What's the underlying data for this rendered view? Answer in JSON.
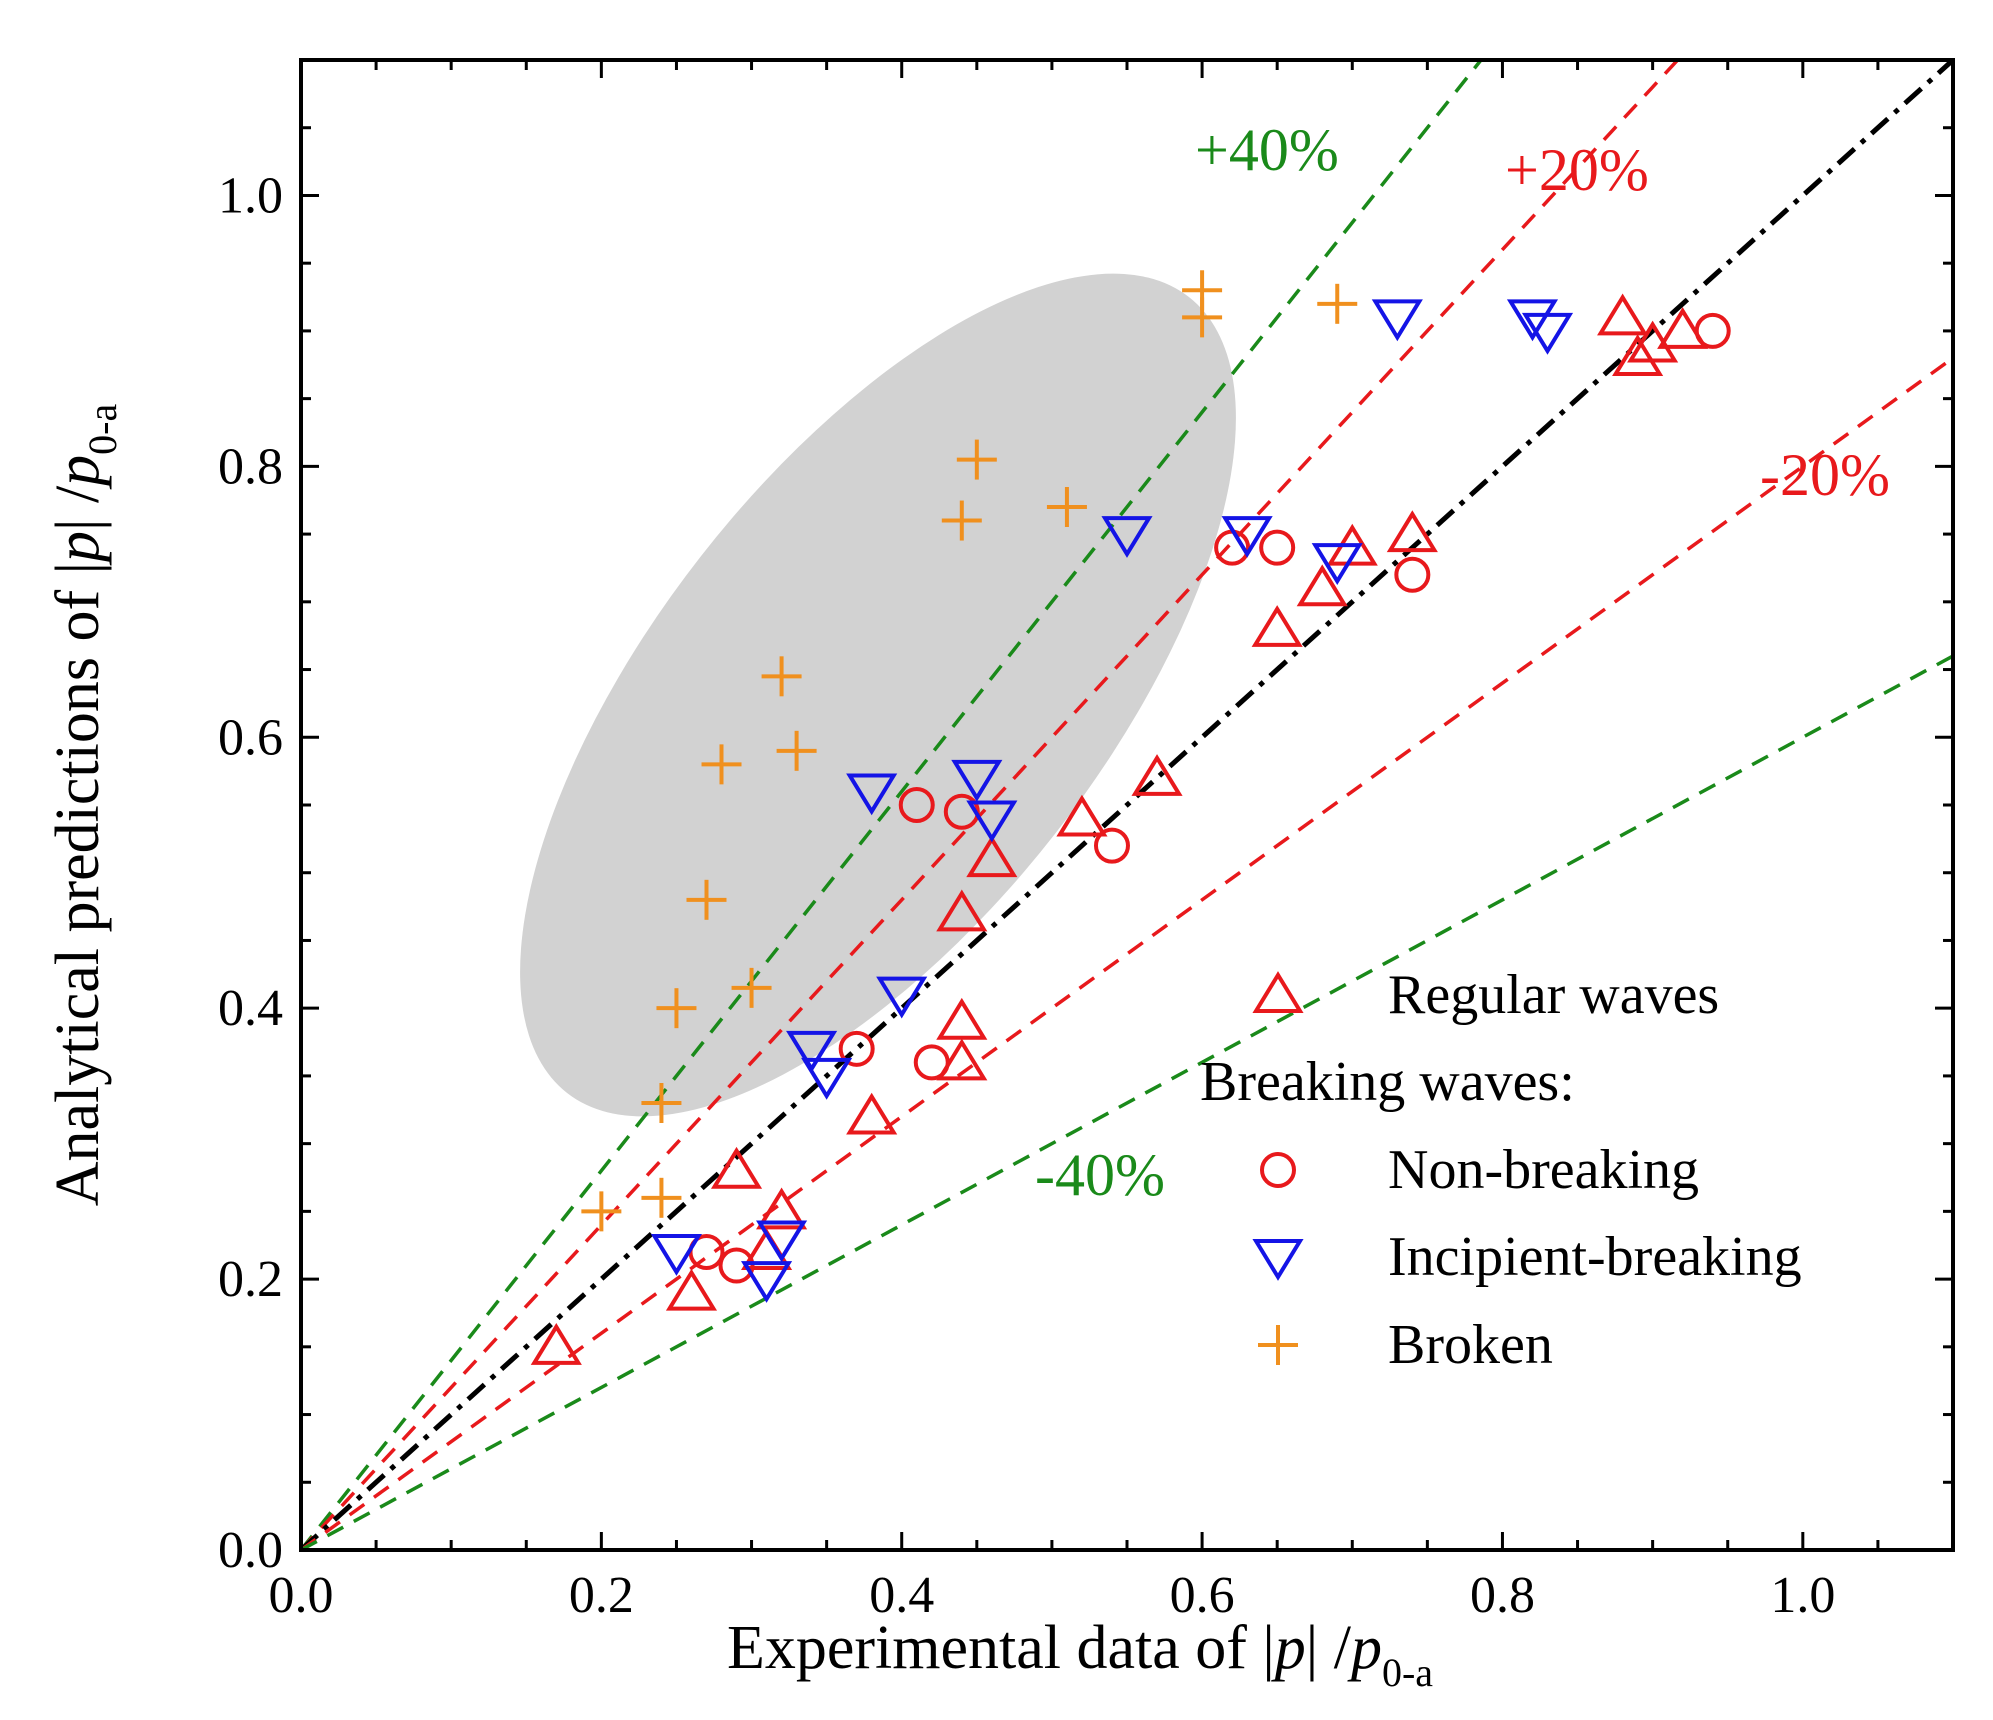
{
  "chart_data": {
    "type": "scatter",
    "xlabel": {
      "prefix": "Experimental data of |",
      "var": "p",
      "mid": "| /",
      "var2": "p",
      "sub": "0-a"
    },
    "ylabel": {
      "prefix": "Analytical predictions of |",
      "var": "p",
      "mid": "| /",
      "var2": "p",
      "sub": "0-a"
    },
    "xlim": [
      0,
      1.1
    ],
    "ylim": [
      0,
      1.1
    ],
    "xticks": [
      "0.0",
      "0.2",
      "0.4",
      "0.6",
      "0.8",
      "1.0"
    ],
    "yticks": [
      "0.0",
      "0.2",
      "0.4",
      "0.6",
      "0.8",
      "1.0"
    ],
    "reference_lines": [
      {
        "label": "+40%",
        "slope": 1.4,
        "color": "#1a8a1a"
      },
      {
        "label": "+20%",
        "slope": 1.2,
        "color": "#e8191c"
      },
      {
        "label": "",
        "slope": 1.0,
        "color": "#000000"
      },
      {
        "label": "-20%",
        "slope": 0.8,
        "color": "#e8191c"
      },
      {
        "label": "-40%",
        "slope": 0.6,
        "color": "#1a8a1a"
      }
    ],
    "highlight_region": {
      "note": "shaded ellipse around broken-wave points",
      "color": "#cfcfcf"
    },
    "series": [
      {
        "name": "Regular waves",
        "marker": "triangle-up",
        "color": "#e8191c",
        "points": [
          [
            0.17,
            0.15
          ],
          [
            0.26,
            0.19
          ],
          [
            0.29,
            0.28
          ],
          [
            0.31,
            0.22
          ],
          [
            0.32,
            0.25
          ],
          [
            0.38,
            0.32
          ],
          [
            0.44,
            0.36
          ],
          [
            0.44,
            0.39
          ],
          [
            0.44,
            0.47
          ],
          [
            0.46,
            0.51
          ],
          [
            0.52,
            0.54
          ],
          [
            0.57,
            0.57
          ],
          [
            0.65,
            0.68
          ],
          [
            0.68,
            0.71
          ],
          [
            0.7,
            0.74
          ],
          [
            0.74,
            0.75
          ],
          [
            0.88,
            0.91
          ],
          [
            0.89,
            0.88
          ],
          [
            0.9,
            0.89
          ],
          [
            0.92,
            0.9
          ]
        ]
      },
      {
        "name": "Non-breaking",
        "marker": "circle",
        "color": "#e8191c",
        "points": [
          [
            0.27,
            0.22
          ],
          [
            0.29,
            0.21
          ],
          [
            0.37,
            0.37
          ],
          [
            0.42,
            0.36
          ],
          [
            0.41,
            0.55
          ],
          [
            0.44,
            0.545
          ],
          [
            0.54,
            0.52
          ],
          [
            0.62,
            0.74
          ],
          [
            0.65,
            0.74
          ],
          [
            0.74,
            0.72
          ],
          [
            0.94,
            0.9
          ]
        ]
      },
      {
        "name": "Incipient-breaking",
        "marker": "triangle-down",
        "color": "#1414e6",
        "points": [
          [
            0.25,
            0.22
          ],
          [
            0.31,
            0.2
          ],
          [
            0.32,
            0.23
          ],
          [
            0.34,
            0.37
          ],
          [
            0.35,
            0.35
          ],
          [
            0.38,
            0.56
          ],
          [
            0.4,
            0.41
          ],
          [
            0.45,
            0.57
          ],
          [
            0.46,
            0.54
          ],
          [
            0.55,
            0.75
          ],
          [
            0.63,
            0.75
          ],
          [
            0.69,
            0.73
          ],
          [
            0.73,
            0.91
          ],
          [
            0.82,
            0.91
          ],
          [
            0.83,
            0.9
          ]
        ]
      },
      {
        "name": "Broken",
        "marker": "plus",
        "color": "#f0901e",
        "points": [
          [
            0.2,
            0.25
          ],
          [
            0.24,
            0.33
          ],
          [
            0.24,
            0.26
          ],
          [
            0.25,
            0.4
          ],
          [
            0.27,
            0.48
          ],
          [
            0.28,
            0.58
          ],
          [
            0.3,
            0.415
          ],
          [
            0.32,
            0.645
          ],
          [
            0.33,
            0.59
          ],
          [
            0.44,
            0.76
          ],
          [
            0.45,
            0.805
          ],
          [
            0.51,
            0.77
          ],
          [
            0.6,
            0.93
          ],
          [
            0.6,
            0.91
          ],
          [
            0.69,
            0.92
          ]
        ]
      }
    ],
    "legend": {
      "placement": "bottom-right",
      "group_label": "Breaking waves:",
      "entries": [
        "Regular waves",
        "Non-breaking",
        "Incipient-breaking",
        "Broken"
      ]
    }
  }
}
